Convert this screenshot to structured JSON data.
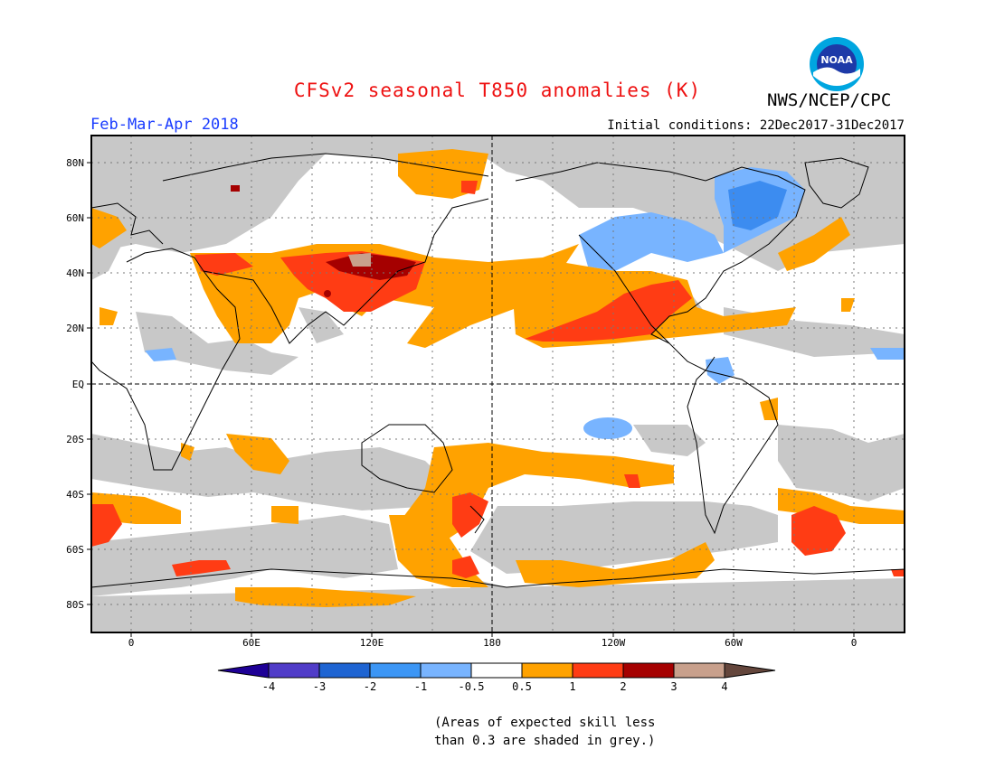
{
  "header": {
    "title": "CFSv2 seasonal T850 anomalies (K)",
    "agency": "NWS/NCEP/CPC",
    "logo_text": "NOAA",
    "season": "Feb-Mar-Apr 2018",
    "initial_conditions": "Initial conditions: 22Dec2017-31Dec2017"
  },
  "map": {
    "lat_labels": [
      "80N",
      "60N",
      "40N",
      "20N",
      "EQ",
      "20S",
      "40S",
      "60S",
      "80S"
    ],
    "lon_labels": [
      "0",
      "60E",
      "120E",
      "180",
      "120W",
      "60W",
      "0"
    ],
    "colors": {
      "neutral": "#ffffff",
      "low_skill": "#c8c8c8",
      "warm1": "#ffa200",
      "warm2": "#ff3c14",
      "warm3": "#a50000",
      "warm4": "#c8a08c",
      "cool1": "#78b4ff",
      "cool2": "#3c8cf0"
    }
  },
  "colorbar": {
    "labels": [
      "-4",
      "-3",
      "-2",
      "-1",
      "-0.5",
      "0.5",
      "1",
      "2",
      "3",
      "4"
    ],
    "colors": [
      "#1e0096",
      "#503cc8",
      "#1e64d2",
      "#3c96f5",
      "#78b4ff",
      "#ffffff",
      "#ffa200",
      "#ff3c14",
      "#a50000",
      "#c8a08c",
      "#64463c"
    ]
  },
  "footnote": {
    "line1": "(Areas of expected skill less",
    "line2": "than 0.3 are shaded in grey.)"
  }
}
